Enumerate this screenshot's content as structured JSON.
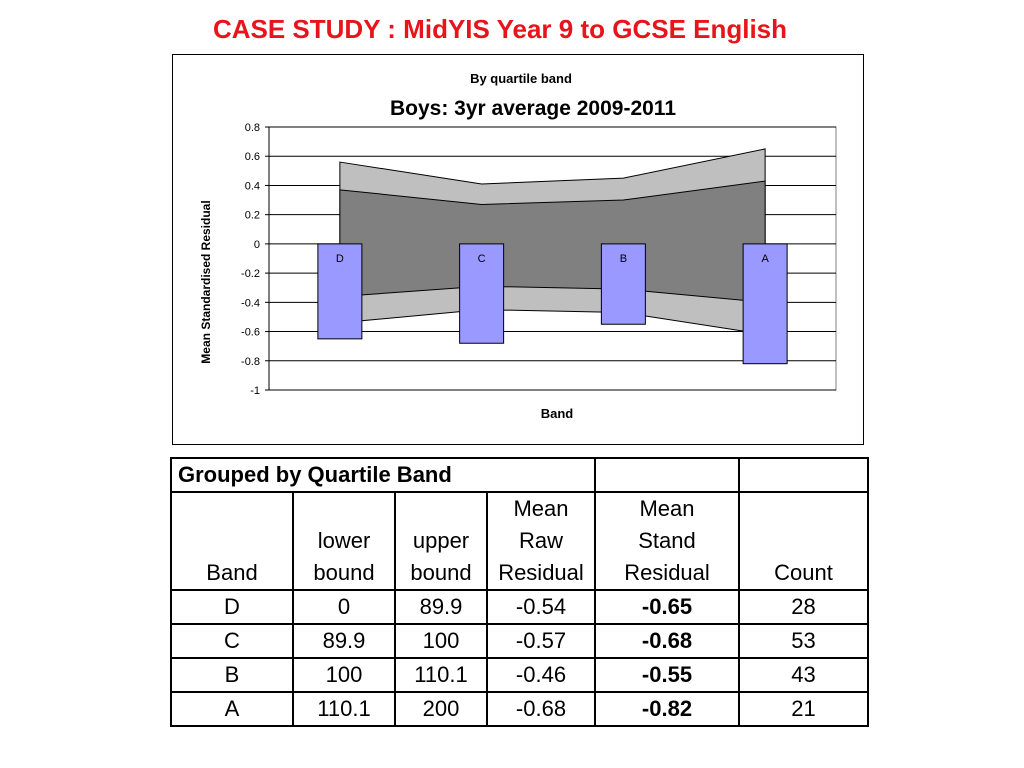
{
  "page_title": "CASE STUDY : MidYIS Year 9 to GCSE English",
  "chart_data": {
    "type": "bar",
    "title": "Boys: 3yr average 2009-2011",
    "subtitle": "By quartile band",
    "xlabel": "Band",
    "ylabel": "Mean Standardised Residual",
    "ylim": [
      -1,
      0.8
    ],
    "yticks": [
      0.8,
      0.6,
      0.4,
      0.2,
      0,
      -0.2,
      -0.4,
      -0.6,
      -0.8,
      -1
    ],
    "ytick_labels": [
      "0.8",
      "0.6",
      "0.4",
      "0.2",
      "0",
      "-0.2",
      "-0.4",
      "-0.6",
      "-0.8",
      "-1"
    ],
    "grid": true,
    "legend": "none",
    "categories": [
      "D",
      "C",
      "B",
      "A"
    ],
    "series": [
      {
        "values": [
          -0.65,
          -0.68,
          -0.55,
          -0.82
        ],
        "color": "#9999ff"
      }
    ],
    "confidence_bands": [
      {
        "color": "#bfbfbf",
        "upper": [
          0.56,
          0.41,
          0.45,
          0.65
        ],
        "lower": [
          -0.54,
          -0.45,
          -0.47,
          -0.62
        ]
      },
      {
        "color": "#808080",
        "upper": [
          0.37,
          0.27,
          0.3,
          0.43
        ],
        "lower": [
          -0.36,
          -0.29,
          -0.31,
          -0.4
        ]
      }
    ]
  },
  "table": {
    "caption": "Grouped by Quartile Band",
    "headers": [
      [
        "",
        "",
        "",
        "Band"
      ],
      [
        "",
        "",
        "lower",
        "bound"
      ],
      [
        "",
        "",
        "upper",
        "bound"
      ],
      [
        "",
        "Mean",
        "Raw",
        "Residual"
      ],
      [
        "",
        "Mean",
        "Stand",
        "Residual"
      ],
      [
        "",
        "",
        "",
        "Count"
      ]
    ],
    "rows": [
      [
        "D",
        "0",
        "89.9",
        "-0.54",
        "-0.65",
        "28"
      ],
      [
        "C",
        "89.9",
        "100",
        "-0.57",
        "-0.68",
        "53"
      ],
      [
        "B",
        "100",
        "110.1",
        "-0.46",
        "-0.55",
        "43"
      ],
      [
        "A",
        "110.1",
        "200",
        "-0.68",
        "-0.82",
        "21"
      ]
    ]
  }
}
